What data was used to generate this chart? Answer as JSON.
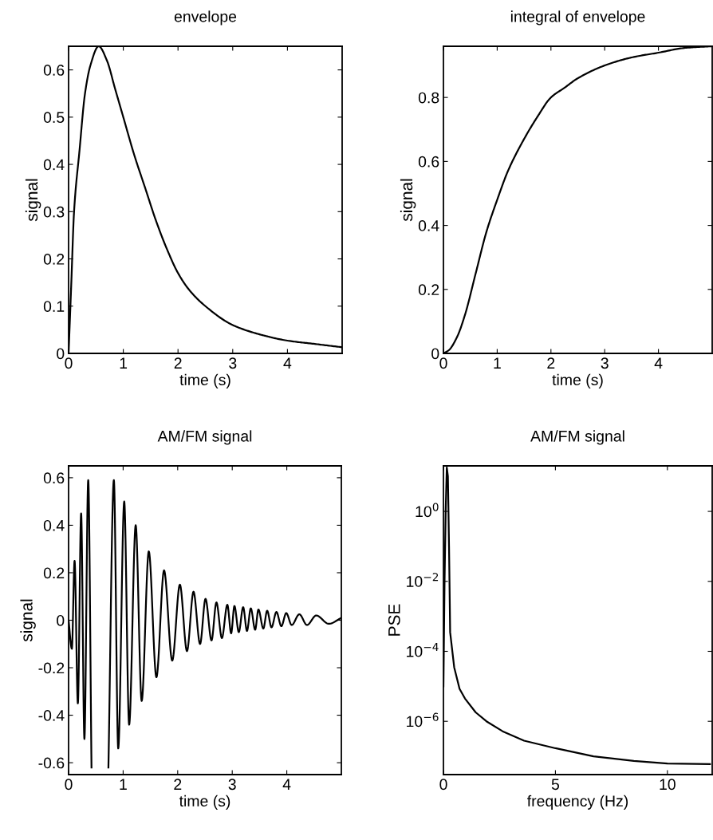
{
  "chart_data": [
    {
      "type": "line",
      "title": "envelope",
      "xlabel": "time (s)",
      "ylabel": "signal",
      "color": "#000000",
      "xlim": [
        0,
        5
      ],
      "ylim": [
        0,
        0.65
      ],
      "xticks": [
        0,
        1,
        2,
        3,
        4
      ],
      "yticks": [
        0,
        0.1,
        0.2,
        0.3,
        0.4,
        0.5,
        0.6
      ],
      "x": [
        0,
        0.05,
        0.1,
        0.2,
        0.3,
        0.4,
        0.55,
        0.7,
        0.85,
        1.0,
        1.2,
        1.4,
        1.6,
        1.8,
        2.0,
        2.2,
        2.5,
        3,
        3.5,
        4,
        4.5,
        5
      ],
      "values": [
        0,
        0.15,
        0.3,
        0.43,
        0.55,
        0.61,
        0.65,
        0.62,
        0.56,
        0.5,
        0.42,
        0.35,
        0.28,
        0.22,
        0.17,
        0.135,
        0.1,
        0.06,
        0.04,
        0.027,
        0.02,
        0.013
      ]
    },
    {
      "type": "line",
      "title": "integral of envelope",
      "xlabel": "time (s)",
      "ylabel": "signal",
      "color": "#000000",
      "xlim": [
        0,
        5
      ],
      "ylim": [
        0,
        0.96
      ],
      "xticks": [
        0,
        1,
        2,
        3,
        4
      ],
      "yticks": [
        0,
        0.2,
        0.4,
        0.6,
        0.8
      ],
      "x": [
        0,
        0.1,
        0.25,
        0.4,
        0.6,
        0.8,
        1.0,
        1.2,
        1.5,
        1.75,
        2,
        2.25,
        2.5,
        3,
        3.5,
        4,
        4.5,
        5
      ],
      "values": [
        0,
        0.01,
        0.05,
        0.12,
        0.25,
        0.38,
        0.48,
        0.57,
        0.67,
        0.74,
        0.8,
        0.83,
        0.86,
        0.9,
        0.925,
        0.94,
        0.955,
        0.96
      ]
    },
    {
      "type": "line",
      "title": "AM/FM signal",
      "xlabel": "time (s)",
      "ylabel": "signal",
      "color": "#000000",
      "xlim": [
        0,
        5
      ],
      "ylim": [
        -0.65,
        0.65
      ],
      "xticks": [
        0,
        1,
        2,
        3,
        4
      ],
      "yticks": [
        -0.6,
        -0.4,
        -0.2,
        0,
        0.2,
        0.4,
        0.6
      ],
      "x": [
        0,
        0.06,
        0.11,
        0.17,
        0.23,
        0.29,
        0.36,
        0.42,
        0.5,
        0.56,
        0.65,
        0.73,
        0.83,
        0.91,
        1.02,
        1.11,
        1.23,
        1.34,
        1.47,
        1.61,
        1.75,
        1.9,
        2.04,
        2.17,
        2.29,
        2.41,
        2.51,
        2.62,
        2.71,
        2.81,
        2.91,
        2.98,
        3.04,
        3.12,
        3.2,
        3.27,
        3.34,
        3.42,
        3.48,
        3.57,
        3.64,
        3.72,
        3.81,
        3.9,
        3.99,
        4.09,
        4.23,
        4.37,
        4.54,
        4.77,
        5.0
      ],
      "values": [
        0.0,
        -0.12,
        0.25,
        -0.35,
        0.45,
        -0.5,
        0.59,
        -0.62,
        null,
        null,
        null,
        -0.62,
        0.59,
        -0.54,
        0.5,
        -0.44,
        0.4,
        -0.34,
        0.29,
        -0.24,
        0.21,
        -0.17,
        0.15,
        -0.13,
        0.12,
        -0.1,
        0.09,
        -0.085,
        0.075,
        -0.075,
        0.065,
        -0.055,
        0.06,
        -0.05,
        0.055,
        -0.045,
        0.05,
        -0.04,
        0.045,
        -0.035,
        0.04,
        -0.03,
        0.035,
        -0.025,
        0.03,
        -0.02,
        0.025,
        -0.02,
        0.02,
        -0.015,
        0.01
      ]
    },
    {
      "type": "line",
      "title": "AM/FM signal",
      "xlabel": "frequency (Hz)",
      "ylabel": "PSE",
      "color": "#000000",
      "log": true,
      "xlim": [
        0,
        12
      ],
      "ylim": [
        3e-08,
        20
      ],
      "xticks": [
        0,
        5,
        10
      ],
      "yticks": [
        {
          "value": 1e-06,
          "label": "10$^{−6}$"
        },
        {
          "value": 0.0001,
          "label": "10$^{−4}$"
        },
        {
          "value": 0.01,
          "label": "10$^{−2}$"
        },
        {
          "value": 1,
          "label": "10$^{0}$"
        }
      ],
      "x": [
        0,
        0.05,
        0.1,
        0.15,
        0.2,
        0.25,
        0.3,
        0.48,
        0.72,
        0.96,
        1.44,
        1.92,
        2.64,
        3.6,
        5,
        6.7,
        8.5,
        10,
        11.9
      ],
      "values": [
        1e-05,
        0.01,
        1,
        18,
        10,
        0.1,
        0.00035,
        3.5e-05,
        8.5e-06,
        4.5e-06,
        1.8e-06,
        1e-06,
        5.2e-07,
        2.8e-07,
        1.7e-07,
        1e-07,
        7.4e-08,
        6.2e-08,
        6e-08
      ]
    }
  ]
}
